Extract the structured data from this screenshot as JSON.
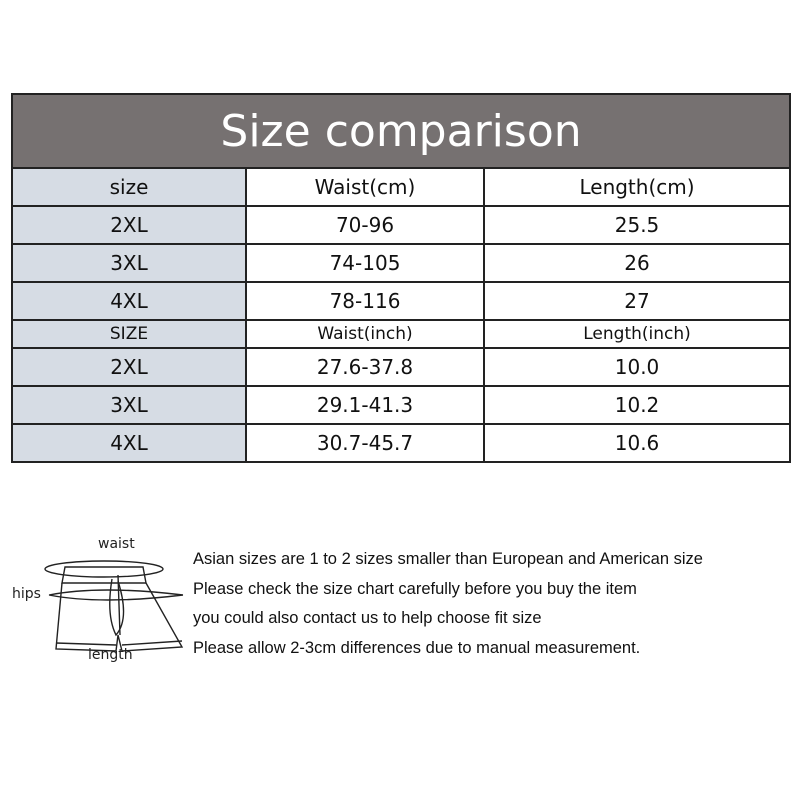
{
  "title": "Size comparison",
  "cm_header": [
    "size",
    "Waist(cm)",
    "Length(cm)"
  ],
  "cm_rows": [
    [
      "2XL",
      "70-96",
      "25.5"
    ],
    [
      "3XL",
      "74-105",
      "26"
    ],
    [
      "4XL",
      "78-116",
      "27"
    ]
  ],
  "inch_header": [
    "SIZE",
    "Waist(inch)",
    "Length(inch)"
  ],
  "inch_rows": [
    [
      "2XL",
      "27.6-37.8",
      "10.0"
    ],
    [
      "3XL",
      "29.1-41.3",
      "10.2"
    ],
    [
      "4XL",
      "30.7-45.7",
      "10.6"
    ]
  ],
  "diagram": {
    "waist": "waist",
    "hips": "hips",
    "length": "length"
  },
  "notes": [
    "Asian sizes are 1 to 2 sizes smaller than European and American size",
    "Please check the size chart carefully before you buy the item",
    "you could also contact us to help choose fit size",
    "Please allow 2-3cm differences due to manual measurement."
  ],
  "colors": {
    "title_bg": "#767171",
    "size_col_bg": "#d6dce4"
  }
}
